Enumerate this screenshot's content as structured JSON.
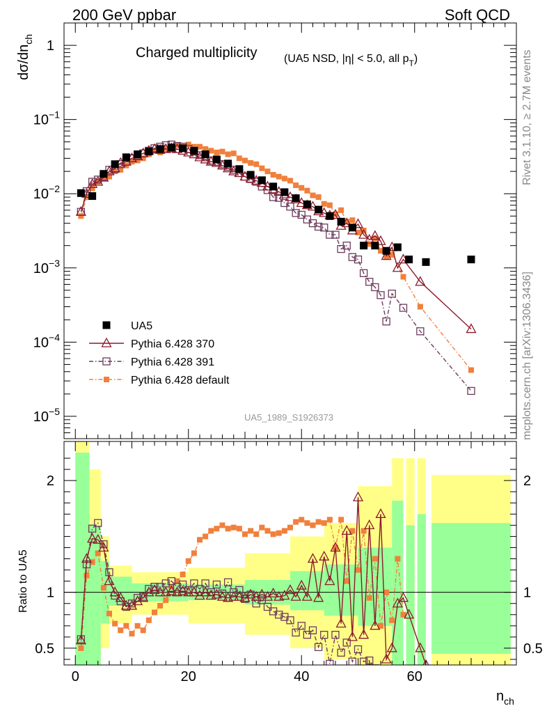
{
  "header": {
    "left": "200 GeV ppbar",
    "right": "Soft QCD",
    "side_top": "Rivet 3.1.10, ≥ 2.7M events",
    "side_bottom": "mcplots.cern.ch [arXiv:1306.3436]",
    "analysis_id": "UA5_1989_S1926373"
  },
  "colors": {
    "data": "#000000",
    "p370": "#8b1a2a",
    "p391": "#6b3a5a",
    "pdef": "#f0803c",
    "band_inner": "#99ff99",
    "band_outer": "#ffff88"
  },
  "chart_data": [
    {
      "type": "scatter",
      "title": "Charged multiplicity",
      "title_note": "(UA5 NSD, |η| < 5.0, all p",
      "title_note_sub": "T",
      "title_note_close": ")",
      "ylabel": "dσ/dn",
      "ylabel_sub": "ch",
      "yscale": "log",
      "ylim": [
        5e-06,
        2
      ],
      "xlim": [
        -2,
        78
      ],
      "yticks": [
        {
          "base": "1",
          "exp": ""
        },
        {
          "base": "10",
          "exp": "−1"
        },
        {
          "base": "10",
          "exp": "−2"
        },
        {
          "base": "10",
          "exp": "−3"
        },
        {
          "base": "10",
          "exp": "−4"
        },
        {
          "base": "10",
          "exp": "−5"
        }
      ],
      "legend_position": "bottom-left",
      "series": [
        {
          "name": "UA5",
          "key": "data",
          "x": [
            1,
            3,
            5,
            7,
            9,
            11,
            13,
            15,
            17,
            19,
            21,
            23,
            25,
            27,
            29,
            31,
            33,
            35,
            37,
            39,
            41,
            43,
            45,
            47,
            49,
            51,
            53,
            55,
            57,
            59,
            62,
            70
          ],
          "y": [
            0.0102,
            0.0093,
            0.0185,
            0.025,
            0.031,
            0.034,
            0.037,
            0.04,
            0.042,
            0.041,
            0.038,
            0.034,
            0.029,
            0.0255,
            0.0215,
            0.018,
            0.0152,
            0.0125,
            0.0105,
            0.0087,
            0.0072,
            0.0061,
            0.005,
            0.0042,
            0.0035,
            0.002,
            0.002,
            0.0017,
            0.0019,
            0.0013,
            0.0012,
            0.0013
          ]
        },
        {
          "name": "Pythia 6.428 370",
          "key": "p370",
          "x": [
            1,
            2,
            3,
            4,
            5,
            6,
            7,
            8,
            9,
            10,
            11,
            12,
            13,
            14,
            15,
            16,
            17,
            18,
            19,
            20,
            21,
            22,
            23,
            24,
            25,
            26,
            27,
            28,
            29,
            30,
            31,
            32,
            33,
            34,
            35,
            36,
            37,
            38,
            39,
            40,
            41,
            42,
            43,
            44,
            45,
            46,
            47,
            48,
            49,
            50,
            51,
            52,
            53,
            54,
            55,
            56,
            57,
            58,
            61,
            70
          ],
          "y": [
            0.0057,
            0.01,
            0.0135,
            0.0145,
            0.0165,
            0.02,
            0.022,
            0.026,
            0.027,
            0.03,
            0.032,
            0.035,
            0.038,
            0.04,
            0.039,
            0.04,
            0.041,
            0.04,
            0.038,
            0.036,
            0.034,
            0.031,
            0.029,
            0.027,
            0.026,
            0.024,
            0.022,
            0.02,
            0.019,
            0.017,
            0.016,
            0.015,
            0.014,
            0.0125,
            0.0115,
            0.0106,
            0.0098,
            0.009,
            0.0084,
            0.0075,
            0.007,
            0.0067,
            0.0058,
            0.0055,
            0.0051,
            0.0052,
            0.0037,
            0.004,
            0.0032,
            0.0039,
            0.0028,
            0.0024,
            0.0027,
            0.0023,
            0.00145,
            0.0019,
            0.001,
            0.0013,
            0.00065,
            0.00015
          ]
        },
        {
          "name": "Pythia 6.428 391",
          "key": "p391",
          "x": [
            1,
            2,
            3,
            4,
            5,
            6,
            7,
            8,
            9,
            10,
            11,
            12,
            13,
            14,
            15,
            16,
            17,
            18,
            19,
            20,
            21,
            22,
            23,
            24,
            25,
            26,
            27,
            28,
            29,
            30,
            31,
            32,
            33,
            34,
            35,
            36,
            37,
            38,
            39,
            40,
            41,
            42,
            43,
            44,
            45,
            46,
            47,
            48,
            49,
            50,
            51,
            52,
            53,
            54,
            55,
            56,
            58,
            61,
            70
          ],
          "y": [
            0.0057,
            0.0108,
            0.0145,
            0.0155,
            0.017,
            0.021,
            0.0215,
            0.025,
            0.027,
            0.03,
            0.033,
            0.035,
            0.038,
            0.041,
            0.043,
            0.045,
            0.046,
            0.044,
            0.043,
            0.04,
            0.037,
            0.033,
            0.031,
            0.028,
            0.027,
            0.025,
            0.023,
            0.021,
            0.019,
            0.017,
            0.0158,
            0.0145,
            0.0125,
            0.0112,
            0.009,
            0.0088,
            0.0075,
            0.0067,
            0.0055,
            0.0052,
            0.0045,
            0.004,
            0.0036,
            0.0035,
            0.0028,
            0.0028,
            0.0018,
            0.002,
            0.0014,
            0.0013,
            0.00085,
            0.00065,
            0.00055,
            0.00043,
            0.00019,
            0.00045,
            0.00029,
            0.00014,
            2.2e-05
          ]
        },
        {
          "name": "Pythia 6.428 default",
          "key": "pdef",
          "x": [
            1,
            2,
            3,
            4,
            5,
            6,
            7,
            8,
            9,
            10,
            11,
            12,
            13,
            14,
            15,
            16,
            17,
            18,
            19,
            20,
            21,
            22,
            23,
            24,
            25,
            26,
            27,
            28,
            29,
            30,
            31,
            32,
            33,
            34,
            35,
            36,
            37,
            38,
            39,
            40,
            41,
            42,
            43,
            44,
            45,
            46,
            47,
            48,
            49,
            50,
            51,
            52,
            53,
            54,
            55,
            56,
            58,
            61,
            70
          ],
          "y": [
            0.005,
            0.009,
            0.0118,
            0.0145,
            0.0165,
            0.017,
            0.02,
            0.021,
            0.024,
            0.027,
            0.028,
            0.03,
            0.034,
            0.038,
            0.036,
            0.04,
            0.041,
            0.045,
            0.043,
            0.046,
            0.043,
            0.043,
            0.04,
            0.038,
            0.036,
            0.037,
            0.034,
            0.035,
            0.03,
            0.028,
            0.026,
            0.025,
            0.022,
            0.02,
            0.018,
            0.017,
            0.016,
            0.015,
            0.013,
            0.012,
            0.011,
            0.0095,
            0.009,
            0.0073,
            0.007,
            0.0053,
            0.006,
            0.0042,
            0.0044,
            0.003,
            0.0032,
            0.0021,
            0.0025,
            0.0017,
            0.0014,
            0.0015,
            0.00076,
            0.0003,
            4.2e-05
          ]
        }
      ]
    },
    {
      "type": "line",
      "ylabel": "Ratio to UA5",
      "xlabel": "n",
      "xlabel_sub": "ch",
      "xlim": [
        -2,
        78
      ],
      "ylim": [
        0.35,
        2.35
      ],
      "xticks": [
        "0",
        "20",
        "40",
        "60"
      ],
      "yticks": [
        "0.5",
        "1",
        "2"
      ],
      "reference_line": 1,
      "bands": [
        {
          "x0": 0,
          "x1": 2.5,
          "inner": [
            0.35,
            2.25
          ],
          "outer": [
            0.35,
            2.35
          ]
        },
        {
          "x0": 2.5,
          "x1": 4.5,
          "inner": [
            0.35,
            1.6
          ],
          "outer": [
            0.35,
            2.1
          ]
        },
        {
          "x0": 4.5,
          "x1": 6,
          "inner": [
            0.72,
            1.28
          ],
          "outer": [
            0.5,
            1.5
          ]
        },
        {
          "x0": 6,
          "x1": 10,
          "inner": [
            0.88,
            1.14
          ],
          "outer": [
            0.72,
            1.24
          ]
        },
        {
          "x0": 10,
          "x1": 20,
          "inner": [
            0.92,
            1.08
          ],
          "outer": [
            0.8,
            1.18
          ]
        },
        {
          "x0": 20,
          "x1": 30,
          "inner": [
            0.93,
            1.07
          ],
          "outer": [
            0.72,
            1.22
          ]
        },
        {
          "x0": 30,
          "x1": 38,
          "inner": [
            0.89,
            1.11
          ],
          "outer": [
            0.62,
            1.35
          ]
        },
        {
          "x0": 38,
          "x1": 44,
          "inner": [
            0.84,
            1.19
          ],
          "outer": [
            0.5,
            1.5
          ]
        },
        {
          "x0": 44,
          "x1": 50,
          "inner": [
            0.79,
            1.25
          ],
          "outer": [
            0.4,
            1.62
          ]
        },
        {
          "x0": 50,
          "x1": 56,
          "inner": [
            0.7,
            1.4
          ],
          "outer": [
            0.35,
            1.95
          ]
        },
        {
          "x0": 56,
          "x1": 58,
          "inner": [
            0.35,
            1.82
          ],
          "outer": [
            0.35,
            2.2
          ]
        },
        {
          "x0": 58.5,
          "x1": 60,
          "inner": [
            0.35,
            1.6
          ],
          "outer": [
            0.35,
            2.2
          ]
        },
        {
          "x0": 60.5,
          "x1": 62,
          "inner": [
            0.35,
            1.7
          ],
          "outer": [
            0.35,
            2.2
          ]
        },
        {
          "x0": 63,
          "x1": 77,
          "inner": [
            0.45,
            1.62
          ],
          "outer": [
            0.35,
            2.05
          ]
        }
      ],
      "series": [
        {
          "name": "Pythia 6.428 370",
          "key": "p370",
          "x": [
            1,
            2,
            3,
            4,
            5,
            6,
            7,
            8,
            9,
            10,
            11,
            12,
            13,
            14,
            15,
            16,
            17,
            18,
            19,
            20,
            21,
            22,
            23,
            24,
            25,
            26,
            27,
            28,
            29,
            30,
            31,
            32,
            33,
            34,
            35,
            36,
            37,
            38,
            39,
            40,
            41,
            42,
            43,
            44,
            45,
            46,
            47,
            48,
            49,
            50,
            51,
            52,
            53,
            54,
            55,
            56,
            57,
            58,
            59,
            61,
            62
          ],
          "y": [
            0.57,
            1.3,
            1.48,
            1.47,
            1.4,
            1.1,
            1.0,
            0.95,
            0.88,
            0.88,
            0.92,
            0.95,
            1.0,
            1.02,
            1.0,
            1.0,
            1.01,
            1.0,
            1.01,
            1.0,
            1.0,
            0.97,
            1.0,
            0.97,
            0.98,
            0.96,
            0.95,
            0.96,
            0.96,
            0.95,
            0.98,
            0.96,
            0.98,
            0.96,
            0.99,
            0.96,
            0.97,
            1.02,
            0.96,
            1.06,
            0.96,
            1.3,
            0.95,
            1.32,
            1.1,
            1.4,
            0.72,
            1.55,
            0.6,
            1.85,
            0.62,
            1.6,
            0.7,
            1.7,
            0.4,
            0.5,
            0.9,
            0.95,
            0.8,
            0.5,
            0.35
          ]
        },
        {
          "name": "Pythia 6.428 391",
          "key": "p391",
          "x": [
            1,
            2,
            3,
            4,
            5,
            6,
            7,
            8,
            9,
            10,
            11,
            12,
            13,
            14,
            15,
            16,
            17,
            18,
            19,
            20,
            21,
            22,
            23,
            24,
            25,
            26,
            27,
            28,
            29,
            30,
            31,
            32,
            33,
            34,
            35,
            36,
            37,
            38,
            39,
            40,
            41,
            42,
            43,
            44,
            45,
            46,
            47,
            48,
            49,
            50,
            51,
            52,
            53,
            54
          ],
          "y": [
            0.58,
            1.25,
            1.57,
            1.62,
            1.43,
            1.18,
            0.97,
            0.92,
            0.87,
            0.9,
            0.95,
            0.96,
            1.03,
            1.05,
            1.05,
            1.08,
            1.1,
            1.05,
            1.07,
            1.02,
            1.08,
            1.03,
            1.08,
            1.0,
            1.07,
            0.99,
            1.09,
            1.0,
            1.02,
            0.94,
            0.98,
            0.9,
            0.93,
            0.87,
            0.83,
            0.8,
            0.78,
            0.75,
            0.64,
            0.7,
            0.62,
            0.66,
            0.51,
            0.62,
            0.36,
            0.62,
            0.46,
            0.55,
            0.38,
            0.49,
            0.38,
            0.39,
            0.32,
            0.3
          ]
        },
        {
          "name": "Pythia 6.428 default",
          "key": "pdef",
          "x": [
            1,
            2,
            3,
            4,
            5,
            6,
            7,
            8,
            9,
            10,
            11,
            12,
            13,
            14,
            15,
            16,
            17,
            18,
            19,
            20,
            21,
            22,
            23,
            24,
            25,
            26,
            27,
            28,
            29,
            30,
            31,
            32,
            33,
            34,
            35,
            36,
            37,
            38,
            39,
            40,
            41,
            42,
            43,
            44,
            45,
            46,
            47,
            48,
            49,
            50,
            51,
            52,
            53,
            54,
            55,
            56,
            57,
            58
          ],
          "y": [
            0.5,
            1.15,
            1.27,
            1.35,
            1.04,
            0.81,
            0.72,
            0.66,
            0.7,
            0.63,
            0.7,
            0.66,
            0.75,
            0.82,
            0.88,
            0.93,
            1.05,
            1.1,
            1.16,
            1.28,
            1.35,
            1.47,
            1.5,
            1.55,
            1.57,
            1.6,
            1.57,
            1.58,
            1.57,
            1.52,
            1.55,
            1.52,
            1.58,
            1.55,
            1.52,
            1.53,
            1.55,
            1.58,
            1.63,
            1.65,
            1.62,
            1.6,
            1.63,
            1.62,
            1.65,
            1.4,
            1.65,
            1.1,
            1.55,
            1.2,
            1.55,
            0.95,
            1.3,
            0.7,
            1.0,
            0.75,
            1.3,
            0.8
          ]
        }
      ]
    }
  ],
  "legend": [
    {
      "label": "UA5",
      "key": "data",
      "marker": "filled-square"
    },
    {
      "label": "Pythia 6.428 370",
      "key": "p370",
      "marker": "open-triangle"
    },
    {
      "label": "Pythia 6.428 391",
      "key": "p391",
      "marker": "open-square"
    },
    {
      "label": "Pythia 6.428 default",
      "key": "pdef",
      "marker": "small-filled-square"
    }
  ]
}
